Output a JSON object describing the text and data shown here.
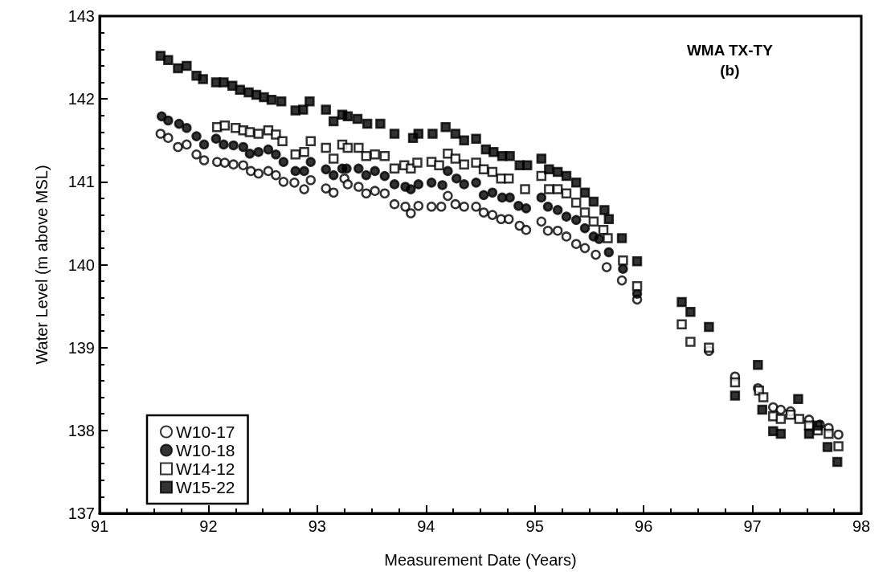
{
  "chart_data": {
    "type": "scatter",
    "title": "WMA TX-TY",
    "subtitle": "(b)",
    "xlabel": "Measurement Date (Years)",
    "ylabel": "Water Level (m above MSL)",
    "xlim": [
      91,
      98
    ],
    "xticks": [
      91,
      92,
      93,
      94,
      95,
      96,
      97,
      98
    ],
    "ylim": [
      137,
      143
    ],
    "yticks": [
      137,
      138,
      139,
      140,
      141,
      142,
      143
    ],
    "grid": false,
    "legend": "bottom left",
    "series": [
      {
        "name": "W10-17",
        "color": "#ffffff",
        "marker": "circle",
        "x": [
          91.56,
          91.63,
          91.72,
          91.8,
          91.89,
          91.96,
          92.08,
          92.15,
          92.23,
          92.32,
          92.39,
          92.46,
          92.55,
          92.62,
          92.69,
          92.79,
          92.88,
          92.94,
          93.08,
          93.15,
          93.25,
          93.28,
          93.38,
          93.45,
          93.53,
          93.62,
          93.71,
          93.81,
          93.86,
          93.93,
          94.05,
          94.14,
          94.2,
          94.27,
          94.35,
          94.46,
          94.53,
          94.61,
          94.69,
          94.76,
          94.86,
          94.92,
          95.06,
          95.12,
          95.21,
          95.29,
          95.38,
          95.46,
          95.56,
          95.66,
          95.8,
          95.94,
          96.6,
          96.84,
          97.05,
          97.19,
          97.26,
          97.35,
          97.52,
          97.62,
          97.7,
          97.79
        ],
        "values": [
          141.58,
          141.53,
          141.42,
          141.45,
          141.33,
          141.26,
          141.24,
          141.23,
          141.21,
          141.2,
          141.13,
          141.1,
          141.13,
          141.08,
          141.0,
          140.99,
          140.91,
          141.02,
          140.92,
          140.87,
          141.04,
          140.97,
          140.94,
          140.86,
          140.89,
          140.86,
          140.73,
          140.7,
          140.62,
          140.71,
          140.7,
          140.7,
          140.83,
          140.73,
          140.7,
          140.7,
          140.63,
          140.6,
          140.55,
          140.55,
          140.47,
          140.42,
          140.52,
          140.41,
          140.41,
          140.34,
          140.25,
          140.2,
          140.12,
          139.97,
          139.81,
          139.58,
          138.96,
          138.65,
          138.51,
          138.28,
          138.25,
          138.23,
          138.13,
          138.07,
          138.03,
          137.95
        ]
      },
      {
        "name": "W10-18",
        "color": "#000000",
        "marker": "circle",
        "x": [
          91.57,
          91.63,
          91.73,
          91.8,
          91.89,
          91.96,
          92.07,
          92.14,
          92.23,
          92.32,
          92.38,
          92.46,
          92.55,
          92.62,
          92.69,
          92.8,
          92.88,
          92.94,
          93.08,
          93.15,
          93.23,
          93.27,
          93.38,
          93.45,
          93.53,
          93.62,
          93.71,
          93.81,
          93.86,
          93.93,
          94.05,
          94.15,
          94.2,
          94.28,
          94.35,
          94.46,
          94.53,
          94.61,
          94.7,
          94.77,
          94.85,
          94.92,
          95.06,
          95.12,
          95.21,
          95.29,
          95.38,
          95.46,
          95.54,
          95.59,
          95.68,
          95.81,
          95.94
        ],
        "values": [
          141.79,
          141.74,
          141.7,
          141.65,
          141.55,
          141.45,
          141.52,
          141.45,
          141.44,
          141.42,
          141.34,
          141.36,
          141.39,
          141.33,
          141.24,
          141.13,
          141.13,
          141.24,
          141.15,
          141.08,
          141.16,
          141.16,
          141.16,
          141.08,
          141.13,
          141.07,
          140.97,
          140.94,
          140.91,
          140.97,
          140.99,
          140.96,
          141.13,
          141.04,
          140.97,
          140.99,
          140.84,
          140.87,
          140.81,
          140.81,
          140.71,
          140.68,
          140.81,
          140.7,
          140.66,
          140.58,
          140.54,
          140.44,
          140.34,
          140.31,
          140.15,
          139.95,
          139.65
        ]
      },
      {
        "name": "W14-12",
        "color": "#ffffff",
        "marker": "square",
        "x": [
          92.08,
          92.15,
          92.25,
          92.32,
          92.38,
          92.46,
          92.55,
          92.62,
          92.68,
          92.8,
          92.88,
          92.94,
          93.08,
          93.15,
          93.23,
          93.28,
          93.38,
          93.45,
          93.53,
          93.62,
          93.71,
          93.8,
          93.86,
          93.92,
          94.05,
          94.12,
          94.2,
          94.27,
          94.35,
          94.46,
          94.53,
          94.61,
          94.69,
          94.76,
          94.91,
          95.06,
          95.13,
          95.21,
          95.29,
          95.38,
          95.46,
          95.54,
          95.63,
          95.67,
          95.81,
          95.94,
          96.35,
          96.43,
          96.6,
          96.84,
          97.06,
          97.1,
          97.19,
          97.26,
          97.35,
          97.43,
          97.52,
          97.6,
          97.7,
          97.79
        ],
        "values": [
          141.66,
          141.68,
          141.65,
          141.62,
          141.6,
          141.58,
          141.62,
          141.57,
          141.49,
          141.33,
          141.36,
          141.49,
          141.41,
          141.28,
          141.45,
          141.41,
          141.41,
          141.31,
          141.33,
          141.31,
          141.16,
          141.2,
          141.16,
          141.23,
          141.24,
          141.2,
          141.34,
          141.28,
          141.21,
          141.23,
          141.15,
          141.12,
          141.04,
          141.04,
          140.91,
          141.07,
          140.91,
          140.91,
          140.86,
          140.75,
          140.63,
          140.52,
          140.42,
          140.32,
          140.05,
          139.74,
          139.28,
          139.07,
          139.0,
          138.58,
          138.48,
          138.4,
          138.17,
          138.14,
          138.19,
          138.14,
          138.06,
          138.0,
          137.96,
          137.81
        ]
      },
      {
        "name": "W15-22",
        "color": "#000000",
        "marker": "square",
        "x": [
          91.56,
          91.63,
          91.72,
          91.8,
          91.89,
          91.95,
          92.07,
          92.14,
          92.22,
          92.29,
          92.37,
          92.44,
          92.51,
          92.58,
          92.67,
          92.8,
          92.87,
          92.93,
          93.08,
          93.15,
          93.23,
          93.28,
          93.37,
          93.46,
          93.58,
          93.71,
          93.88,
          93.93,
          94.06,
          94.18,
          94.27,
          94.35,
          94.46,
          94.55,
          94.62,
          94.7,
          94.77,
          94.86,
          94.93,
          95.06,
          95.13,
          95.21,
          95.29,
          95.38,
          95.46,
          95.54,
          95.64,
          95.68,
          95.8,
          95.94,
          96.35,
          96.43,
          96.6,
          96.84,
          97.05,
          97.09,
          97.19,
          97.26,
          97.42,
          97.52,
          97.6,
          97.69,
          97.78
        ],
        "values": [
          142.52,
          142.47,
          142.37,
          142.4,
          142.28,
          142.24,
          142.2,
          142.2,
          142.16,
          142.11,
          142.08,
          142.05,
          142.02,
          141.99,
          141.97,
          141.86,
          141.87,
          141.97,
          141.87,
          141.73,
          141.81,
          141.79,
          141.76,
          141.7,
          141.7,
          141.58,
          141.53,
          141.58,
          141.58,
          141.66,
          141.58,
          141.5,
          141.52,
          141.39,
          141.36,
          141.31,
          141.31,
          141.2,
          141.2,
          141.28,
          141.15,
          141.12,
          141.07,
          140.99,
          140.87,
          140.76,
          140.66,
          140.55,
          140.32,
          140.04,
          139.55,
          139.43,
          139.25,
          138.42,
          138.79,
          138.25,
          137.99,
          137.96,
          138.38,
          137.96,
          138.06,
          137.8,
          137.62
        ]
      }
    ]
  }
}
